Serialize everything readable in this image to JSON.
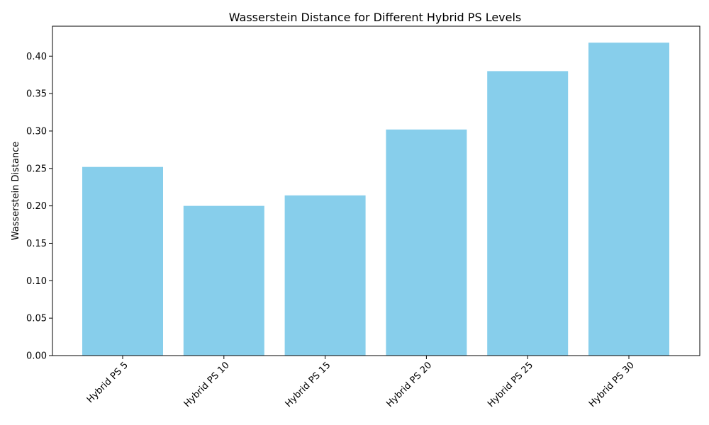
{
  "chart_data": {
    "type": "bar",
    "title": "Wasserstein Distance for Different Hybrid PS Levels",
    "xlabel": "",
    "ylabel": "Wasserstein Distance",
    "categories": [
      "Hybrid PS 5",
      "Hybrid PS 10",
      "Hybrid PS 15",
      "Hybrid PS 20",
      "Hybrid PS 25",
      "Hybrid PS 30"
    ],
    "values": [
      0.252,
      0.2,
      0.214,
      0.302,
      0.38,
      0.418
    ],
    "ylim": [
      0,
      0.44
    ],
    "yticks": [
      "0.00",
      "0.05",
      "0.10",
      "0.15",
      "0.20",
      "0.25",
      "0.30",
      "0.35",
      "0.40"
    ],
    "x_tick_rotation": "45 degrees",
    "grid": false,
    "legend": "none",
    "bar_color": "#87CEEB"
  }
}
